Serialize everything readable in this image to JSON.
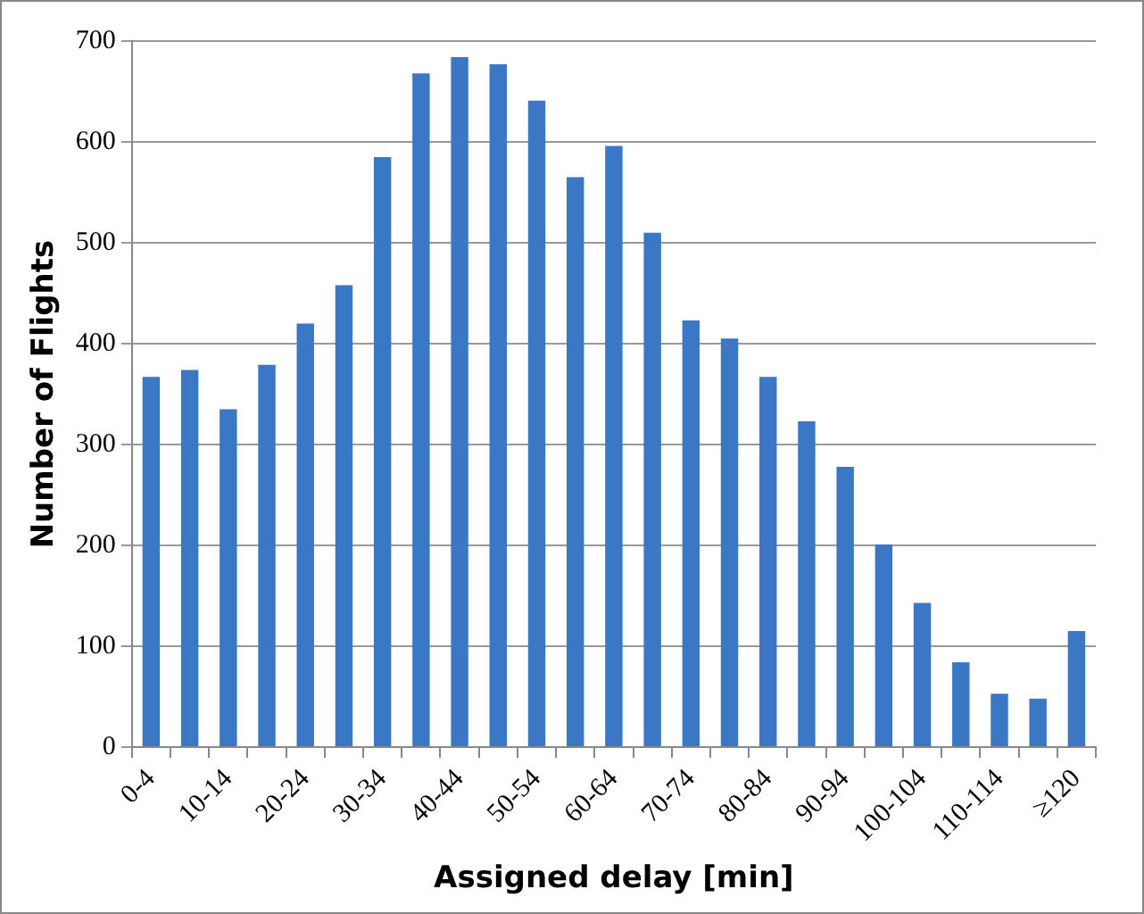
{
  "chart_data": {
    "type": "bar",
    "xlabel": "Assigned delay [min]",
    "ylabel": "Number of Flights",
    "categories": [
      "0-4",
      null,
      "10-14",
      null,
      "20-24",
      null,
      "30-34",
      null,
      "40-44",
      null,
      "50-54",
      null,
      "60-64",
      null,
      "70-74",
      null,
      "80-84",
      null,
      "90-94",
      null,
      "100-104",
      null,
      "110-114",
      null,
      "≥120"
    ],
    "values": [
      367,
      374,
      335,
      379,
      420,
      458,
      585,
      668,
      684,
      677,
      641,
      565,
      596,
      510,
      423,
      405,
      367,
      323,
      278,
      201,
      143,
      84,
      53,
      48,
      115
    ],
    "color": "#3a78c6",
    "ylim": [
      0,
      700
    ],
    "yticks": [
      0,
      100,
      200,
      300,
      400,
      500,
      600,
      700
    ],
    "grid": "y",
    "legend": false
  }
}
